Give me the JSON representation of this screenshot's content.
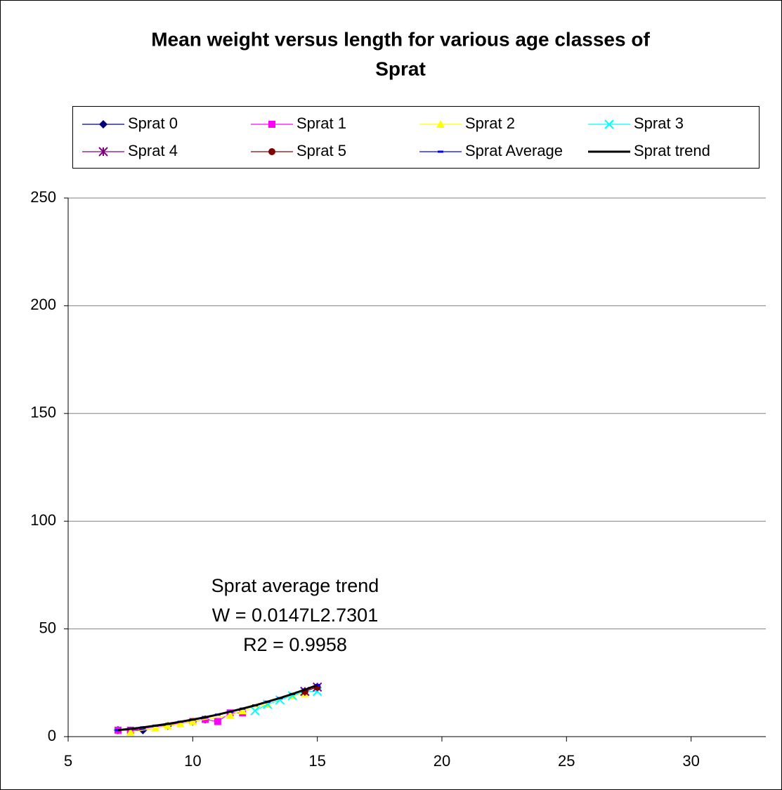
{
  "chart_data": {
    "type": "line",
    "title": [
      "Mean weight versus length for various age classes of",
      "Sprat"
    ],
    "annotations": [
      "Sprat average trend",
      "W = 0.0147L2.7301",
      "R2 = 0.9958"
    ],
    "xlim": [
      5,
      33
    ],
    "xticks": [
      5,
      10,
      15,
      20,
      25,
      30
    ],
    "ylim": [
      0,
      250
    ],
    "yticks": [
      0,
      50,
      100,
      150,
      200,
      250
    ],
    "grid": true,
    "series": [
      {
        "name": "Sprat 0",
        "color": "#000080",
        "marker": "diamond",
        "x": [
          7,
          8,
          9,
          10,
          10.5
        ],
        "values": [
          3,
          3,
          5,
          7,
          8
        ]
      },
      {
        "name": "Sprat 1",
        "color": "#ff00ff",
        "marker": "square",
        "x": [
          7,
          7.5,
          10,
          10.5,
          11,
          11.5,
          12
        ],
        "values": [
          3,
          3,
          7,
          8,
          7,
          11,
          11
        ]
      },
      {
        "name": "Sprat 2",
        "color": "#ffff00",
        "marker": "triangle",
        "x": [
          7.5,
          8.5,
          9,
          9.5,
          10,
          11.5,
          12,
          13,
          14,
          14.5
        ],
        "values": [
          2,
          4,
          5,
          6,
          7,
          10,
          12,
          15,
          19,
          20
        ]
      },
      {
        "name": "Sprat 3",
        "color": "#00ffff",
        "marker": "x",
        "x": [
          12.5,
          13,
          13.5,
          14,
          14.5,
          15
        ],
        "values": [
          12,
          15,
          17,
          19,
          21,
          21
        ]
      },
      {
        "name": "Sprat 4",
        "color": "#800080",
        "marker": "star",
        "x": [
          14.5,
          15
        ],
        "values": [
          21,
          23
        ]
      },
      {
        "name": "Sprat 5",
        "color": "#800000",
        "marker": "circle",
        "x": [
          14.5,
          15
        ],
        "values": [
          21,
          23
        ]
      },
      {
        "name": "Sprat Average",
        "color": "#0000ff",
        "marker": "dash",
        "x": [
          7,
          7.5,
          8,
          8.5,
          9,
          9.5,
          10,
          10.5,
          11,
          11.5,
          12,
          12.5,
          13,
          13.5,
          14,
          14.5,
          15
        ],
        "values": [
          3,
          3.6,
          4.3,
          5.1,
          5.9,
          6.9,
          7.9,
          9,
          10.2,
          11.6,
          13,
          14.5,
          16.2,
          17.9,
          19.8,
          21.8,
          23.9
        ]
      },
      {
        "name": "Sprat trend",
        "color": "#000000",
        "marker": "none",
        "x": [
          7,
          7.5,
          8,
          8.5,
          9,
          9.5,
          10,
          10.5,
          11,
          11.5,
          12,
          12.5,
          13,
          13.5,
          14,
          14.5,
          15
        ],
        "values": [
          3,
          3.6,
          4.3,
          5.1,
          5.9,
          6.9,
          7.9,
          9,
          10.2,
          11.6,
          13,
          14.5,
          16.2,
          17.9,
          19.8,
          21.8,
          23.9
        ]
      }
    ]
  }
}
